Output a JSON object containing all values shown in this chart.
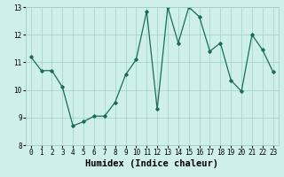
{
  "x": [
    0,
    1,
    2,
    3,
    4,
    5,
    6,
    7,
    8,
    9,
    10,
    11,
    12,
    13,
    14,
    15,
    16,
    17,
    18,
    19,
    20,
    21,
    22,
    23
  ],
  "y": [
    11.2,
    10.7,
    10.7,
    10.1,
    8.7,
    8.85,
    9.05,
    9.05,
    9.55,
    10.55,
    11.1,
    12.85,
    9.3,
    13.0,
    11.7,
    13.0,
    12.65,
    11.4,
    11.7,
    10.35,
    9.95,
    12.0,
    11.45,
    10.65
  ],
  "xlabel": "Humidex (Indice chaleur)",
  "ylim": [
    8,
    13
  ],
  "xlim": [
    -0.5,
    23.5
  ],
  "yticks": [
    8,
    9,
    10,
    11,
    12,
    13
  ],
  "xticks": [
    0,
    1,
    2,
    3,
    4,
    5,
    6,
    7,
    8,
    9,
    10,
    11,
    12,
    13,
    14,
    15,
    16,
    17,
    18,
    19,
    20,
    21,
    22,
    23
  ],
  "line_color": "#1a6b5a",
  "marker": "D",
  "marker_size": 1.8,
  "bg_color": "#cff0ea",
  "grid_color": "#9ecfc7",
  "tick_fontsize": 5.5,
  "xlabel_fontsize": 7.5
}
